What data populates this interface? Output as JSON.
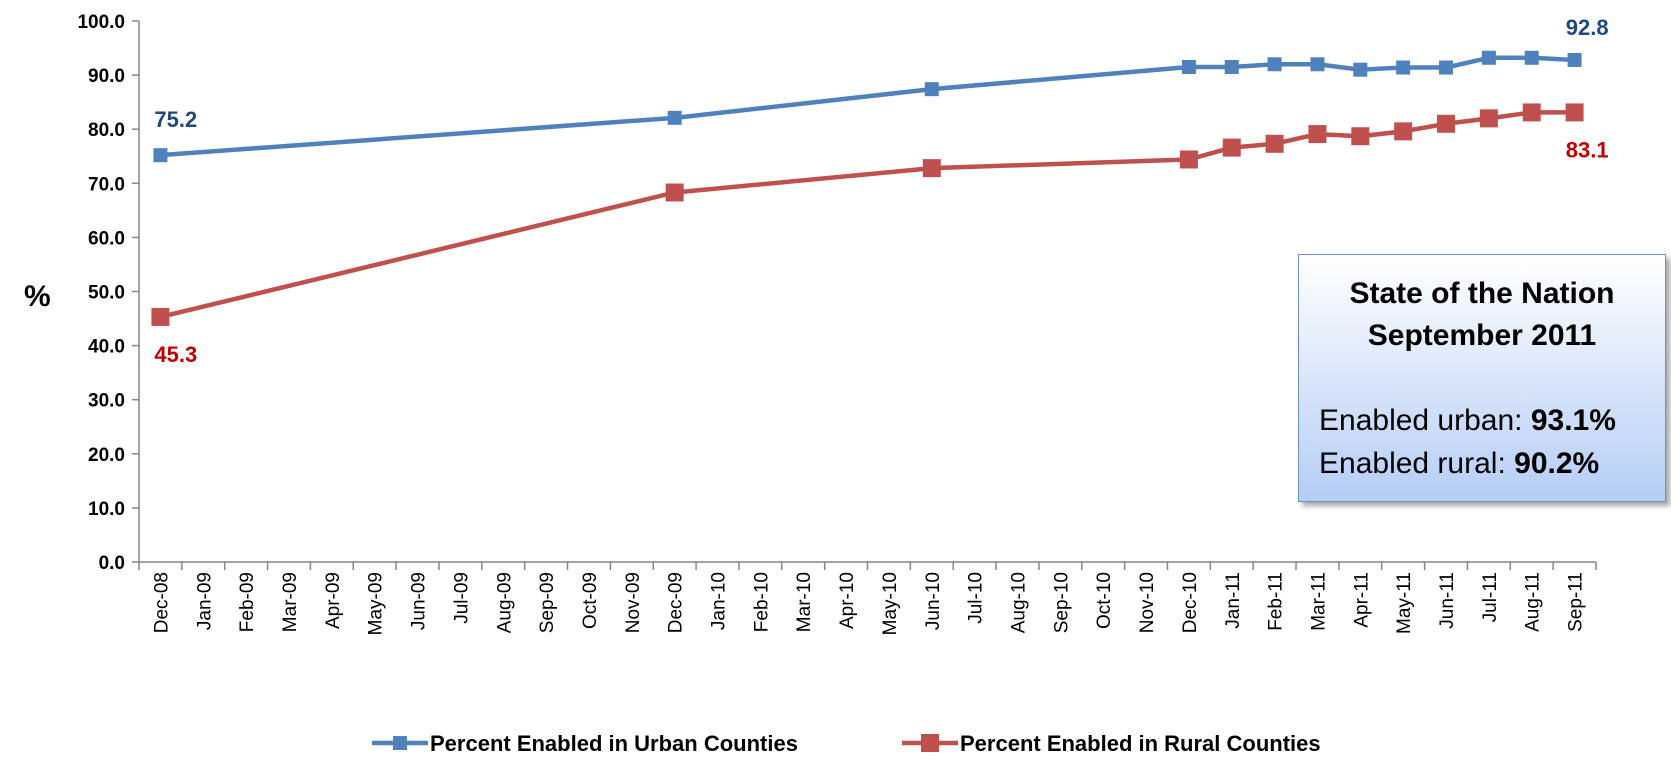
{
  "chart_data": {
    "type": "line",
    "ylabel": "%",
    "ylim": [
      0,
      100
    ],
    "yticks": [
      "0.0",
      "10.0",
      "20.0",
      "30.0",
      "40.0",
      "50.0",
      "60.0",
      "70.0",
      "80.0",
      "90.0",
      "100.0"
    ],
    "categories": [
      "Dec-08",
      "Jan-09",
      "Feb-09",
      "Mar-09",
      "Apr-09",
      "May-09",
      "Jun-09",
      "Jul-09",
      "Aug-09",
      "Sep-09",
      "Oct-09",
      "Nov-09",
      "Dec-09",
      "Jan-10",
      "Feb-10",
      "Mar-10",
      "Apr-10",
      "May-10",
      "Jun-10",
      "Jul-10",
      "Aug-10",
      "Sep-10",
      "Oct-10",
      "Nov-10",
      "Dec-10",
      "Jan-11",
      "Feb-11",
      "Mar-11",
      "Apr-11",
      "May-11",
      "Jun-11",
      "Jul-11",
      "Aug-11",
      "Sep-11"
    ],
    "legend_position": "bottom",
    "grid": false,
    "series": [
      {
        "name": "Percent Enabled in Urban Counties",
        "color": "#4f81bd",
        "points": [
          [
            "Dec-08",
            75.2
          ],
          [
            "Dec-09",
            82.1
          ],
          [
            "Jun-10",
            87.4
          ],
          [
            "Dec-10",
            91.5
          ],
          [
            "Jan-11",
            91.5
          ],
          [
            "Feb-11",
            92.0
          ],
          [
            "Mar-11",
            92.0
          ],
          [
            "Apr-11",
            91.0
          ],
          [
            "May-11",
            91.4
          ],
          [
            "Jun-11",
            91.4
          ],
          [
            "Jul-11",
            93.2
          ],
          [
            "Aug-11",
            93.2
          ],
          [
            "Sep-11",
            92.8
          ]
        ]
      },
      {
        "name": "Percent Enabled in Rural Counties",
        "color": "#c0504d",
        "points": [
          [
            "Dec-08",
            45.3
          ],
          [
            "Dec-09",
            68.3
          ],
          [
            "Jun-10",
            72.8
          ],
          [
            "Dec-10",
            74.4
          ],
          [
            "Jan-11",
            76.6
          ],
          [
            "Feb-11",
            77.3
          ],
          [
            "Mar-11",
            79.1
          ],
          [
            "Apr-11",
            78.7
          ],
          [
            "May-11",
            79.6
          ],
          [
            "Jun-11",
            81.0
          ],
          [
            "Jul-11",
            82.0
          ],
          [
            "Aug-11",
            83.1
          ],
          [
            "Sep-11",
            83.1
          ]
        ]
      }
    ],
    "data_labels": [
      {
        "text": "75.2",
        "color": "#1f497d"
      },
      {
        "text": "45.3",
        "color": "#c00000"
      },
      {
        "text": "92.8",
        "color": "#1f497d"
      },
      {
        "text": "83.1",
        "color": "#c00000"
      }
    ]
  },
  "callout": {
    "title_line1": "State of the Nation",
    "title_line2": "September 2011",
    "urban_label": "Enabled urban:",
    "urban_value": "93.1%",
    "rural_label": "Enabled rural:",
    "rural_value": "90.2%"
  }
}
